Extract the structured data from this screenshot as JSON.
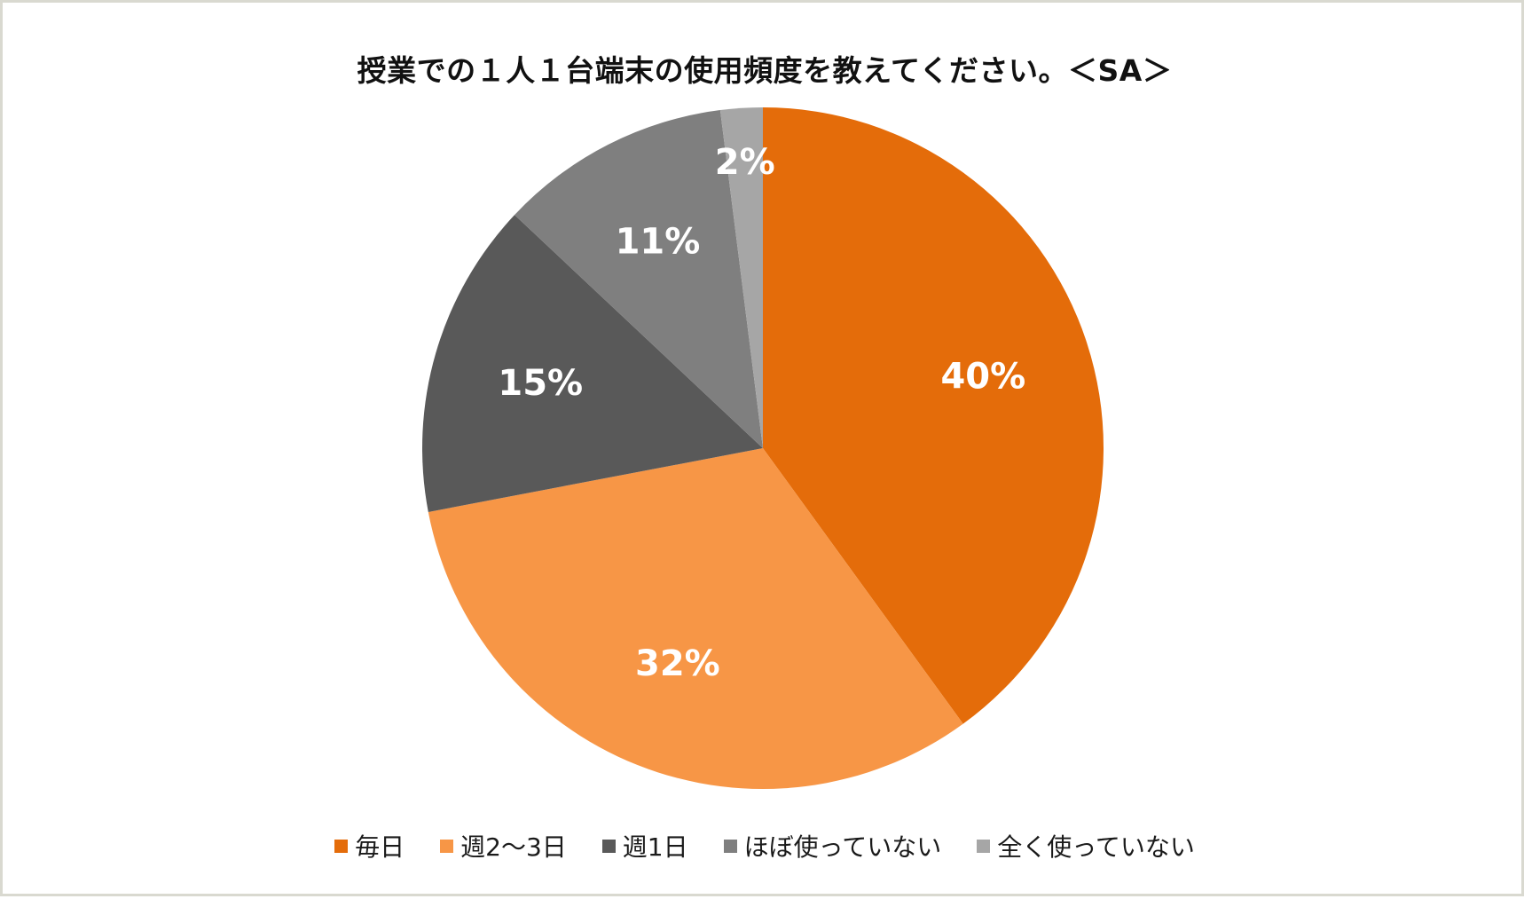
{
  "chart_data": {
    "type": "pie",
    "title": "授業での１人１台端末の使用頻度を教えてください。＜SA＞",
    "categories": [
      "毎日",
      "週2～3日",
      "週1日",
      "ほぼ使っていない",
      "全く使っていない"
    ],
    "values": [
      40,
      32,
      15,
      11,
      2
    ],
    "labels": [
      "40%",
      "32%",
      "15%",
      "11%",
      "2%"
    ],
    "colors": [
      "#e46c0a",
      "#f79646",
      "#595959",
      "#7f7f7f",
      "#a6a6a6"
    ],
    "start": "12 o'clock",
    "direction": "clockwise",
    "legend": "bottom"
  }
}
